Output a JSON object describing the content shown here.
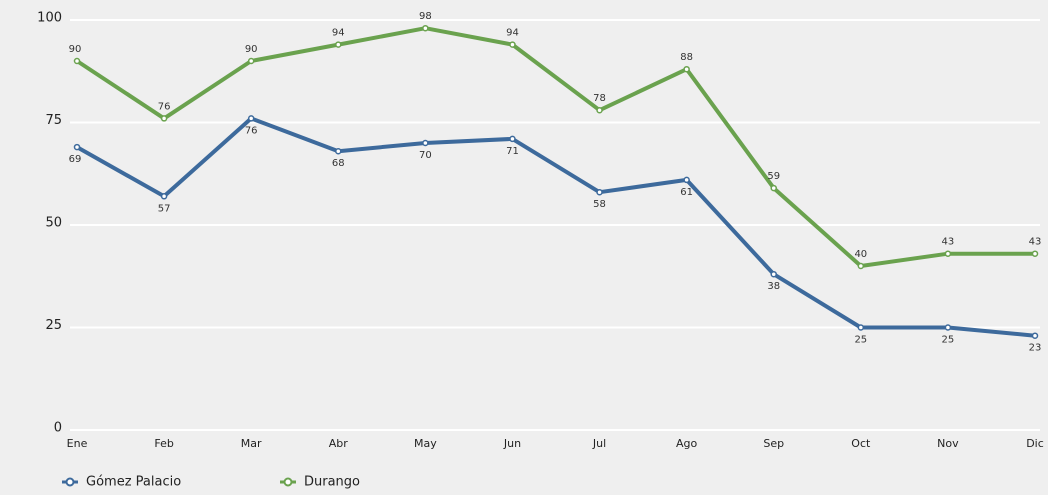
{
  "chart_data": {
    "type": "line",
    "categories": [
      "Ene",
      "Feb",
      "Mar",
      "Abr",
      "May",
      "Jun",
      "Jul",
      "Ago",
      "Sep",
      "Oct",
      "Nov",
      "Dic"
    ],
    "series": [
      {
        "name": "Gómez Palacio",
        "color": "#3d6a9c",
        "values": [
          69,
          57,
          76,
          68,
          70,
          71,
          58,
          61,
          38,
          25,
          25,
          23
        ]
      },
      {
        "name": "Durango",
        "color": "#6aa24e",
        "values": [
          90,
          76,
          90,
          94,
          98,
          94,
          78,
          88,
          59,
          40,
          43,
          43
        ]
      }
    ],
    "ylim": [
      0,
      100
    ],
    "yticks": [
      0,
      25,
      50,
      75,
      100
    ],
    "grid": true
  }
}
